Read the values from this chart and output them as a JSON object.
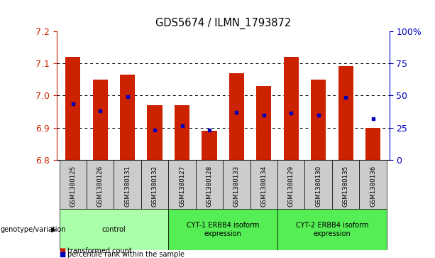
{
  "title": "GDS5674 / ILMN_1793872",
  "samples": [
    "GSM1380125",
    "GSM1380126",
    "GSM1380131",
    "GSM1380132",
    "GSM1380127",
    "GSM1380128",
    "GSM1380133",
    "GSM1380134",
    "GSM1380129",
    "GSM1380130",
    "GSM1380135",
    "GSM1380136"
  ],
  "bar_values": [
    7.12,
    7.05,
    7.065,
    6.97,
    6.97,
    6.89,
    7.07,
    7.03,
    7.12,
    7.05,
    7.09,
    6.9
  ],
  "dot_values": [
    6.975,
    6.952,
    6.996,
    6.892,
    6.905,
    6.893,
    6.947,
    6.938,
    6.945,
    6.94,
    6.993,
    6.928
  ],
  "bar_bottom": 6.8,
  "ylim_min": 6.8,
  "ylim_max": 7.2,
  "yticks": [
    6.8,
    6.9,
    7.0,
    7.1,
    7.2
  ],
  "y2lim_min": 0,
  "y2lim_max": 100,
  "y2ticks": [
    0,
    25,
    50,
    75,
    100
  ],
  "y2ticklabels": [
    "0",
    "25",
    "50",
    "75",
    "100%"
  ],
  "bar_color": "#CC2200",
  "dot_color": "#0000BB",
  "bg_color": "#FFFFFF",
  "groups": [
    {
      "start": 0,
      "end": 3,
      "label": "control",
      "color": "#AAFFAA"
    },
    {
      "start": 4,
      "end": 7,
      "label": "CYT-1 ERBB4 isoform\nexpression",
      "color": "#55EE55"
    },
    {
      "start": 8,
      "end": 11,
      "label": "CYT-2 ERBB4 isoform\nexpression",
      "color": "#55EE55"
    }
  ],
  "legend_items": [
    "transformed count",
    "percentile rank within the sample"
  ],
  "genotype_label": "genotype/variation"
}
